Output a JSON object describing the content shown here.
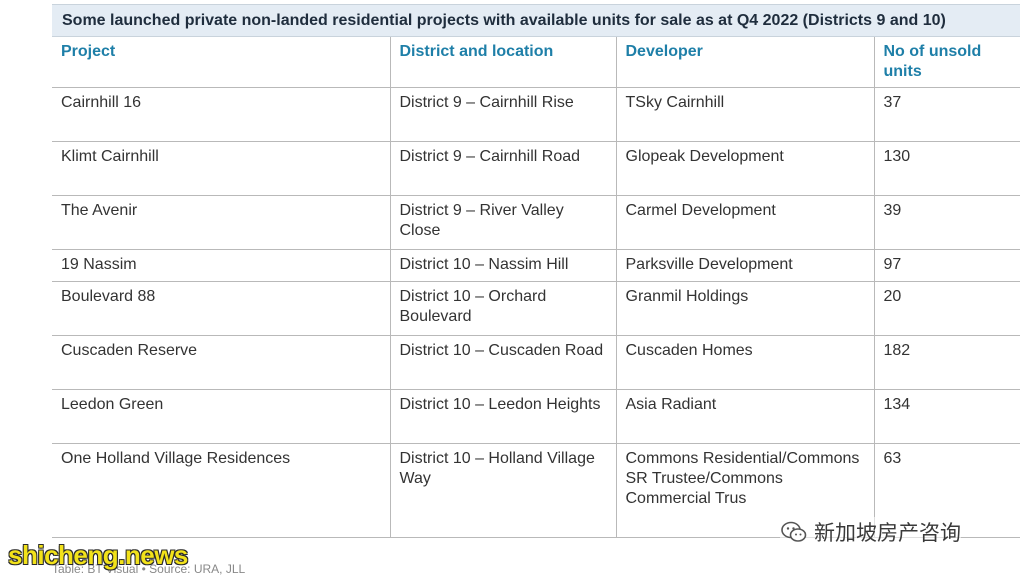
{
  "title": "Some launched private non-landed residential projects with available units for sale as at Q4 2022 (Districts 9 and 10)",
  "table": {
    "headers": [
      "Project",
      "District and location",
      "Developer",
      "No of unsold units"
    ],
    "rows": [
      [
        "Cairnhill 16",
        "District 9 – Cairnhill Rise",
        "TSky Cairnhill",
        "37"
      ],
      [
        "Klimt Cairnhill",
        "District 9 – Cairnhill Road",
        "Glopeak Development",
        "130"
      ],
      [
        "The Avenir",
        "District 9 – River Valley Close",
        "Carmel Development",
        "39"
      ],
      [
        "19 Nassim",
        "District 10 – Nassim Hill",
        "Parksville Development",
        "97"
      ],
      [
        "Boulevard 88",
        "District 10 – Orchard Boulevard",
        "Granmil Holdings",
        "20"
      ],
      [
        "Cuscaden Reserve",
        "District 10 – Cuscaden Road",
        "Cuscaden Homes",
        "182"
      ],
      [
        "Leedon Green",
        "District 10 – Leedon Heights",
        "Asia Radiant",
        "134"
      ],
      [
        "One Holland Village Residences",
        "District 10 – Holland Village Way",
        "Commons Residential/Commons SR Trustee/Commons Commercial Trus",
        "63"
      ]
    ]
  },
  "source": "Table: BT Visual • Source: URA, JLL",
  "watermarks": {
    "left": "shicheng.news",
    "right": "新加坡房产咨询",
    "right_icon": "wechat-icon"
  },
  "colors": {
    "header_text": "#1e7fa8",
    "title_bg": "#e4ecf4",
    "watermark_yellow": "#f2e21a"
  }
}
